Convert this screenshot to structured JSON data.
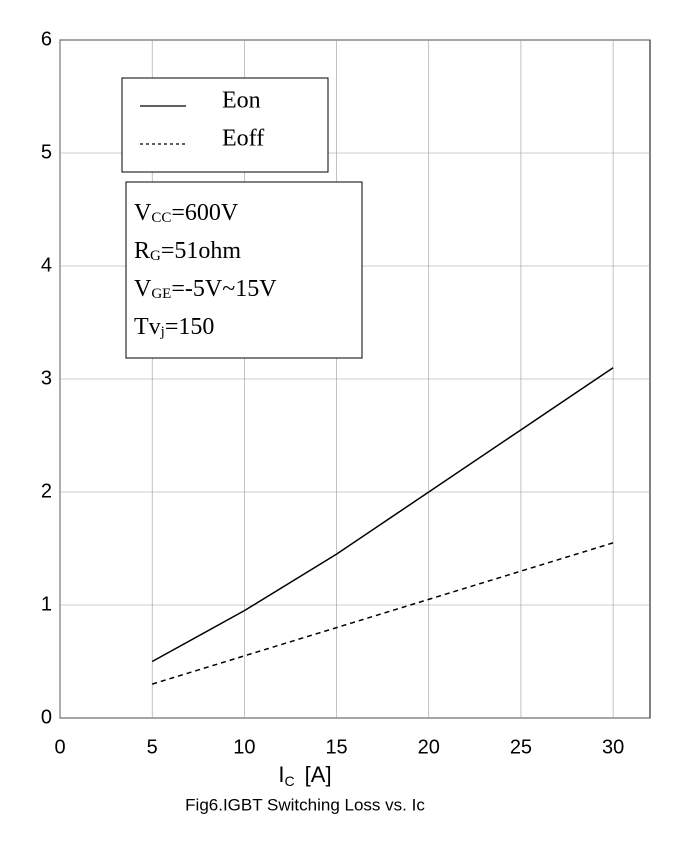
{
  "chart_data": {
    "type": "line",
    "title": "Fig6.IGBT Switching Loss vs. Ic",
    "xlabel": {
      "main": "I",
      "sub": "C",
      "rest": "[A]"
    },
    "x": [
      5,
      10,
      15,
      20,
      25,
      30
    ],
    "series": [
      {
        "name": "Eon",
        "color": "#000000",
        "dash": false,
        "values": [
          0.5,
          0.95,
          1.45,
          2.0,
          2.55,
          3.1
        ]
      },
      {
        "name": "Eoff",
        "color": "#000000",
        "dash": true,
        "values": [
          0.3,
          0.55,
          0.8,
          1.05,
          1.3,
          1.55
        ]
      }
    ],
    "conditions": [
      {
        "symbol": "V",
        "sub": "CC",
        "value": "=600V"
      },
      {
        "symbol": "R",
        "sub": "G",
        "value": "=51ohm"
      },
      {
        "symbol": "V",
        "sub": "GE",
        "value": "=-5V~15V"
      },
      {
        "symbol": "Tv",
        "sub": "j",
        "value": "=150"
      }
    ],
    "xlim": [
      0,
      32
    ],
    "xticks": [
      0,
      5,
      10,
      15,
      20,
      25,
      30
    ],
    "ylim": [
      0,
      6
    ],
    "yticks": [
      0,
      1,
      2,
      3,
      4,
      5,
      6
    ],
    "grid": true
  }
}
